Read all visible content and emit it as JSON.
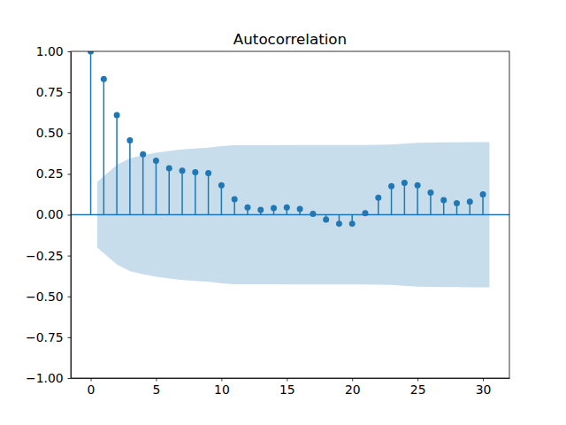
{
  "chart_data": {
    "type": "stem",
    "title": "Autocorrelation",
    "color": "#1f77b4",
    "marker": "circle",
    "x": [
      0,
      1,
      2,
      3,
      4,
      5,
      6,
      7,
      8,
      9,
      10,
      11,
      12,
      13,
      14,
      15,
      16,
      17,
      18,
      19,
      20,
      21,
      22,
      23,
      24,
      25,
      26,
      27,
      28,
      29,
      30
    ],
    "values": [
      1.0,
      0.83,
      0.61,
      0.455,
      0.37,
      0.33,
      0.285,
      0.27,
      0.26,
      0.255,
      0.18,
      0.095,
      0.045,
      0.03,
      0.04,
      0.045,
      0.035,
      0.005,
      -0.03,
      -0.055,
      -0.055,
      0.01,
      0.105,
      0.175,
      0.195,
      0.18,
      0.135,
      0.09,
      0.07,
      0.08,
      0.125
    ],
    "confidence_band": {
      "x": [
        0.5,
        2,
        3,
        4,
        5,
        6,
        7,
        8,
        9,
        10,
        11,
        12,
        13,
        14,
        15,
        16,
        17,
        18,
        19,
        20,
        21,
        22,
        23,
        24,
        25,
        26,
        27,
        28,
        29,
        30.5
      ],
      "upper": [
        0.2,
        0.305,
        0.345,
        0.365,
        0.38,
        0.39,
        0.4,
        0.405,
        0.41,
        0.42,
        0.425,
        0.425,
        0.426,
        0.426,
        0.427,
        0.427,
        0.427,
        0.427,
        0.427,
        0.427,
        0.427,
        0.428,
        0.43,
        0.435,
        0.44,
        0.442,
        0.443,
        0.443,
        0.444,
        0.444
      ],
      "lower": [
        -0.2,
        -0.305,
        -0.345,
        -0.365,
        -0.38,
        -0.39,
        -0.4,
        -0.405,
        -0.41,
        -0.42,
        -0.425,
        -0.425,
        -0.426,
        -0.426,
        -0.427,
        -0.427,
        -0.427,
        -0.427,
        -0.427,
        -0.427,
        -0.427,
        -0.428,
        -0.43,
        -0.435,
        -0.44,
        -0.442,
        -0.443,
        -0.443,
        -0.444,
        -0.444
      ]
    },
    "xlim": [
      -1.525,
      32.025
    ],
    "ylim": [
      -1,
      1
    ],
    "xticks": [
      0,
      5,
      10,
      15,
      20,
      25,
      30
    ],
    "yticks": [
      {
        "value": -1,
        "label": "−1.00"
      },
      {
        "value": -0.75,
        "label": "−0.75"
      },
      {
        "value": -0.5,
        "label": "−0.50"
      },
      {
        "value": -0.25,
        "label": "−0.25"
      },
      {
        "value": 0,
        "label": "0.00"
      },
      {
        "value": 0.25,
        "label": "0.25"
      },
      {
        "value": 0.5,
        "label": "0.50"
      },
      {
        "value": 0.75,
        "label": "0.75"
      },
      {
        "value": 1,
        "label": "1.00"
      }
    ]
  }
}
